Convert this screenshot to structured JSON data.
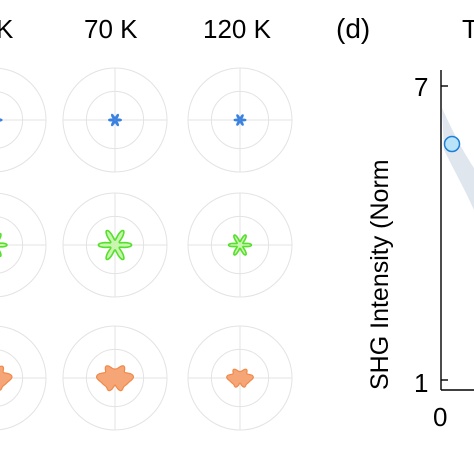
{
  "temperature_labels": [
    "K",
    "70 K",
    "120 K"
  ],
  "panel_label": "(d)",
  "top_right_fragment": "T",
  "colors": {
    "row_blue": "#3b82e0",
    "row_green": "#55e02a",
    "row_green_fill": "#c9f5b0",
    "row_orange": "#f08a4a",
    "row_orange_fill": "#f5a576",
    "polar_grid": "#e3e3e3",
    "marker_fill": "#b9e3f8",
    "marker_edge": "#1e7fd6",
    "band": "#dfe6ee"
  },
  "chart_data": [
    {
      "type": "polar",
      "description_rows": [
        "blue",
        "green",
        "orange"
      ],
      "columns": [
        "K",
        "70 K",
        "120 K"
      ],
      "rows": [
        {
          "color": "#3b82e0",
          "lobes": 6,
          "amplitudes": [
            0.15,
            0.12,
            0.11
          ]
        },
        {
          "color": "#55e02a",
          "lobes": 6,
          "amplitudes": [
            0.25,
            0.32,
            0.22
          ]
        },
        {
          "color": "#f08a4a",
          "lobes": 2,
          "amplitudes": [
            0.35,
            0.36,
            0.26
          ]
        }
      ]
    },
    {
      "type": "scatter",
      "ylabel": "SHG Intensity (Norm",
      "ylim": [
        1,
        7
      ],
      "yticks": [
        "1",
        "7"
      ],
      "xticks": [
        "0"
      ],
      "points": [
        {
          "x": 10,
          "y": 6
        }
      ]
    }
  ]
}
